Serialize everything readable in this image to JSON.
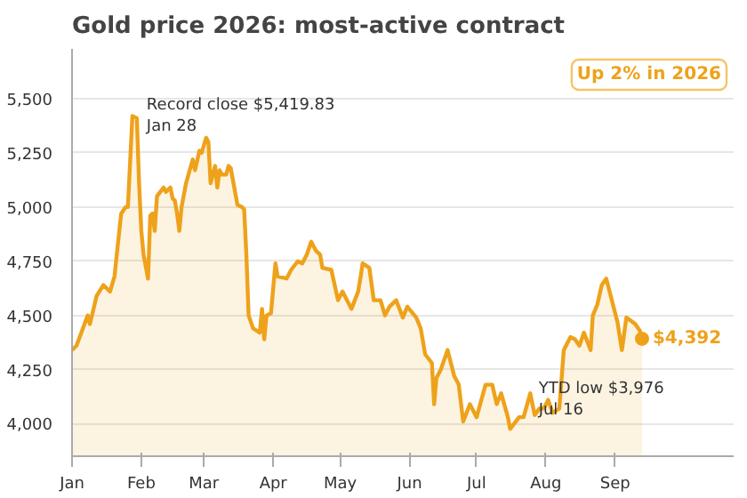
{
  "chart_data": {
    "type": "area",
    "title": "Gold price 2026: most-active contract",
    "x": [
      "2026-01-01",
      "2026-01-03",
      "2026-01-08",
      "2026-01-09",
      "2026-01-12",
      "2026-01-15",
      "2026-01-18",
      "2026-01-20",
      "2026-01-21",
      "2026-01-23",
      "2026-01-25",
      "2026-01-26",
      "2026-01-28",
      "2026-01-30",
      "2026-01-31",
      "2026-02-01",
      "2026-02-02",
      "2026-02-04",
      "2026-02-05",
      "2026-02-06",
      "2026-02-07",
      "2026-02-08",
      "2026-02-11",
      "2026-02-12",
      "2026-02-14",
      "2026-02-15",
      "2026-02-16",
      "2026-02-17",
      "2026-02-18",
      "2026-02-19",
      "2026-02-21",
      "2026-02-24",
      "2026-02-25",
      "2026-02-27",
      "2026-02-28",
      "2026-03-02",
      "2026-03-03",
      "2026-03-04",
      "2026-03-06",
      "2026-03-07",
      "2026-03-08",
      "2026-03-09",
      "2026-03-11",
      "2026-03-12",
      "2026-03-13",
      "2026-03-16",
      "2026-03-18",
      "2026-03-19",
      "2026-03-20",
      "2026-03-21",
      "2026-03-23",
      "2026-03-26",
      "2026-03-27",
      "2026-03-28",
      "2026-03-29",
      "2026-03-31",
      "2026-04-02",
      "2026-04-03",
      "2026-04-07",
      "2026-04-09",
      "2026-04-12",
      "2026-04-14",
      "2026-04-16",
      "2026-04-18",
      "2026-04-20",
      "2026-04-22",
      "2026-04-23",
      "2026-04-27",
      "2026-04-30",
      "2026-05-02",
      "2026-05-06",
      "2026-05-09",
      "2026-05-10",
      "2026-05-11",
      "2026-05-14",
      "2026-05-16",
      "2026-05-19",
      "2026-05-21",
      "2026-05-23",
      "2026-05-26",
      "2026-05-29",
      "2026-05-31",
      "2026-06-04",
      "2026-06-06",
      "2026-06-08",
      "2026-06-11",
      "2026-06-12",
      "2026-06-13",
      "2026-06-15",
      "2026-06-18",
      "2026-06-21",
      "2026-06-23",
      "2026-06-25",
      "2026-06-28",
      "2026-07-01",
      "2026-07-05",
      "2026-07-08",
      "2026-07-10",
      "2026-07-12",
      "2026-07-15",
      "2026-07-16",
      "2026-07-20",
      "2026-07-22",
      "2026-07-25",
      "2026-07-27",
      "2026-07-29",
      "2026-07-31",
      "2026-08-02",
      "2026-08-04",
      "2026-08-07",
      "2026-08-09",
      "2026-08-12",
      "2026-08-14",
      "2026-08-16",
      "2026-08-18",
      "2026-08-21",
      "2026-08-22",
      "2026-08-24",
      "2026-08-26",
      "2026-08-28",
      "2026-08-31",
      "2026-09-02",
      "2026-09-04",
      "2026-09-06",
      "2026-09-10",
      "2026-09-12",
      "2026-09-13"
    ],
    "series": [
      {
        "color": "#eea21b",
        "values": [
          4340,
          4360,
          4500,
          4460,
          4590,
          4640,
          4610,
          4680,
          4780,
          4970,
          5000,
          5000,
          5420,
          5410,
          5110,
          4890,
          4780,
          4670,
          4960,
          4970,
          4890,
          5050,
          5090,
          5070,
          5090,
          5040,
          5030,
          4970,
          4890,
          5000,
          5110,
          5220,
          5170,
          5260,
          5250,
          5320,
          5300,
          5110,
          5190,
          5090,
          5170,
          5150,
          5150,
          5190,
          5180,
          5010,
          5000,
          4990,
          4780,
          4500,
          4440,
          4420,
          4530,
          4390,
          4500,
          4510,
          4740,
          4680,
          4670,
          4710,
          4750,
          4740,
          4780,
          4840,
          4800,
          4780,
          4720,
          4710,
          4570,
          4610,
          4530,
          4610,
          4670,
          4740,
          4720,
          4570,
          4570,
          4500,
          4540,
          4570,
          4490,
          4540,
          4490,
          4440,
          4320,
          4280,
          4090,
          4210,
          4250,
          4340,
          4220,
          4180,
          4010,
          4090,
          4030,
          4180,
          4180,
          4090,
          4140,
          4030,
          3976,
          4030,
          4030,
          4140,
          4040,
          4070,
          4070,
          4110,
          4050,
          4070,
          4340,
          4400,
          4390,
          4360,
          4420,
          4340,
          4500,
          4550,
          4640,
          4670,
          4550,
          4470,
          4340,
          4490,
          4460,
          4430,
          4392
        ]
      }
    ],
    "value_labels": [
      null,
      null,
      null,
      null,
      null,
      null,
      null,
      null,
      null,
      null,
      null,
      null,
      null,
      null,
      null,
      null,
      null,
      null,
      null,
      null,
      null,
      null,
      null,
      null,
      null,
      null,
      null,
      null,
      null,
      null,
      null,
      null,
      null,
      null,
      null,
      null,
      null,
      null,
      null,
      null,
      null,
      null,
      null,
      null,
      null,
      null,
      null,
      null,
      null,
      null,
      null,
      null,
      null,
      null,
      null,
      null,
      null,
      null,
      null,
      null,
      null,
      null,
      null,
      null,
      null,
      null,
      null,
      null,
      null,
      null,
      null,
      null,
      null,
      null,
      null,
      null,
      null,
      null,
      null,
      null,
      null,
      null,
      null,
      null,
      null,
      null,
      null,
      null,
      null,
      null,
      null,
      null,
      null,
      null,
      null,
      null,
      null,
      null,
      null,
      null,
      null,
      null,
      null,
      null,
      null,
      null,
      null,
      null,
      null,
      null,
      null,
      null,
      null,
      null,
      null,
      null,
      null,
      null,
      null,
      null,
      null,
      null,
      null,
      null,
      null,
      null,
      "$4,392"
    ],
    "xlim": [
      "2026-01-01",
      "2026-10-24"
    ],
    "xticks": [
      {
        "value": "2026-01-01",
        "label": "Jan"
      },
      {
        "value": "2026-02-01",
        "label": "Feb"
      },
      {
        "value": "2026-03-01",
        "label": "Mar"
      },
      {
        "value": "2026-04-01",
        "label": "Apr"
      },
      {
        "value": "2026-05-01",
        "label": "May"
      },
      {
        "value": "2026-06-01",
        "label": "Jun"
      },
      {
        "value": "2026-07-01",
        "label": "Jul"
      },
      {
        "value": "2026-08-01",
        "label": "Aug"
      },
      {
        "value": "2026-09-01",
        "label": "Sep"
      }
    ],
    "ylim": [
      3850,
      5730
    ],
    "yticks": [
      {
        "value": 4000,
        "label": "4,000"
      },
      {
        "value": 4250,
        "label": "4,250"
      },
      {
        "value": 4500,
        "label": "4,500"
      },
      {
        "value": 4750,
        "label": "4,750"
      },
      {
        "value": 5000,
        "label": "5,000"
      },
      {
        "value": 5250,
        "label": "5,250"
      },
      {
        "value": 5500,
        "label": "5,500"
      }
    ],
    "grid": "y",
    "annotations": [
      {
        "text": "Record close $5,419.83\nJan 28",
        "x": "2026-01-28",
        "y": 5419.83
      },
      {
        "text": "YTD low $3,976\nJul 16",
        "x": "2026-07-16",
        "y": 3976
      },
      "Up 2% in 2026"
    ]
  }
}
